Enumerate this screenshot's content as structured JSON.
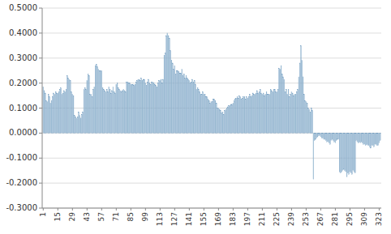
{
  "chart_data": {
    "type": "bar",
    "color": "#b8d0e0",
    "grid": true,
    "ylim": [
      -0.3,
      0.5
    ],
    "yticks": [
      {
        "value": -0.3,
        "label": "-0.3000"
      },
      {
        "value": -0.2,
        "label": "-0.2000"
      },
      {
        "value": -0.1,
        "label": "-0.1000"
      },
      {
        "value": 0.0,
        "label": "0.0000"
      },
      {
        "value": 0.1,
        "label": "0.1000"
      },
      {
        "value": 0.2,
        "label": "0.2000"
      },
      {
        "value": 0.3,
        "label": "0.3000"
      },
      {
        "value": 0.4,
        "label": "0.4000"
      },
      {
        "value": 0.5,
        "label": "0.5000"
      }
    ],
    "xlim": [
      0,
      325
    ],
    "xticks": [
      1,
      15,
      29,
      43,
      57,
      71,
      85,
      99,
      113,
      127,
      141,
      155,
      169,
      183,
      197,
      211,
      225,
      239,
      253,
      267,
      281,
      295,
      309,
      323
    ],
    "x": [
      1,
      2,
      3,
      4,
      5,
      6,
      7,
      8,
      9,
      10,
      11,
      12,
      13,
      14,
      15,
      16,
      17,
      18,
      19,
      20,
      21,
      22,
      23,
      24,
      25,
      26,
      27,
      28,
      29,
      30,
      31,
      32,
      33,
      34,
      35,
      36,
      37,
      38,
      39,
      40,
      41,
      42,
      43,
      44,
      45,
      46,
      47,
      48,
      49,
      50,
      51,
      52,
      53,
      54,
      55,
      56,
      57,
      58,
      59,
      60,
      61,
      62,
      63,
      64,
      65,
      66,
      67,
      68,
      69,
      70,
      71,
      72,
      73,
      74,
      75,
      76,
      77,
      78,
      79,
      80,
      81,
      82,
      83,
      84,
      85,
      86,
      87,
      88,
      89,
      90,
      91,
      92,
      93,
      94,
      95,
      96,
      97,
      98,
      99,
      100,
      101,
      102,
      103,
      104,
      105,
      106,
      107,
      108,
      109,
      110,
      111,
      112,
      113,
      114,
      115,
      116,
      117,
      118,
      119,
      120,
      121,
      122,
      123,
      124,
      125,
      126,
      127,
      128,
      129,
      130,
      131,
      132,
      133,
      134,
      135,
      136,
      137,
      138,
      139,
      140,
      141,
      142,
      143,
      144,
      145,
      146,
      147,
      148,
      149,
      150,
      151,
      152,
      153,
      154,
      155,
      156,
      157,
      158,
      159,
      160,
      161,
      162,
      163,
      164,
      165,
      166,
      167,
      168,
      169,
      170,
      171,
      172,
      173,
      174,
      175,
      176,
      177,
      178,
      179,
      180,
      181,
      182,
      183,
      184,
      185,
      186,
      187,
      188,
      189,
      190,
      191,
      192,
      193,
      194,
      195,
      196,
      197,
      198,
      199,
      200,
      201,
      202,
      203,
      204,
      205,
      206,
      207,
      208,
      209,
      210,
      211,
      212,
      213,
      214,
      215,
      216,
      217,
      218,
      219,
      220,
      221,
      222,
      223,
      224,
      225,
      226,
      227,
      228,
      229,
      230,
      231,
      232,
      233,
      234,
      235,
      236,
      237,
      238,
      239,
      240,
      241,
      242,
      243,
      244,
      245,
      246,
      247,
      248,
      249,
      250,
      251,
      252,
      253,
      254,
      255,
      256,
      257,
      258,
      259,
      260,
      261,
      262,
      263,
      264,
      265,
      266,
      267,
      268,
      269,
      270,
      271,
      272,
      273,
      274,
      275,
      276,
      277,
      278,
      279,
      280,
      281,
      282,
      283,
      284,
      285,
      286,
      287,
      288,
      289,
      290,
      291,
      292,
      293,
      294,
      295,
      296,
      297,
      298,
      299,
      300,
      301,
      302,
      303,
      304,
      305,
      306,
      307,
      308,
      309,
      310,
      311,
      312,
      313,
      314,
      315,
      316,
      317,
      318,
      319,
      320,
      321,
      322,
      323,
      324
    ],
    "values": [
      0.185,
      0.17,
      0.16,
      0.13,
      0.125,
      0.155,
      0.145,
      0.12,
      0.13,
      0.145,
      0.16,
      0.155,
      0.165,
      0.16,
      0.16,
      0.165,
      0.175,
      0.18,
      0.155,
      0.16,
      0.17,
      0.165,
      0.175,
      0.23,
      0.22,
      0.215,
      0.21,
      0.165,
      0.155,
      0.15,
      0.07,
      0.065,
      0.06,
      0.065,
      0.085,
      0.07,
      0.06,
      0.075,
      0.085,
      0.175,
      0.18,
      0.175,
      0.21,
      0.235,
      0.23,
      0.155,
      0.155,
      0.145,
      0.175,
      0.185,
      0.27,
      0.275,
      0.265,
      0.255,
      0.25,
      0.25,
      0.25,
      0.18,
      0.175,
      0.17,
      0.165,
      0.175,
      0.165,
      0.185,
      0.175,
      0.16,
      0.17,
      0.185,
      0.165,
      0.16,
      0.195,
      0.2,
      0.18,
      0.175,
      0.17,
      0.165,
      0.17,
      0.175,
      0.17,
      0.165,
      0.205,
      0.205,
      0.2,
      0.2,
      0.195,
      0.195,
      0.195,
      0.19,
      0.195,
      0.205,
      0.21,
      0.215,
      0.215,
      0.21,
      0.22,
      0.21,
      0.215,
      0.215,
      0.2,
      0.19,
      0.205,
      0.215,
      0.2,
      0.195,
      0.205,
      0.205,
      0.2,
      0.195,
      0.19,
      0.185,
      0.2,
      0.21,
      0.21,
      0.215,
      0.2,
      0.215,
      0.31,
      0.32,
      0.39,
      0.4,
      0.39,
      0.38,
      0.33,
      0.29,
      0.28,
      0.255,
      0.27,
      0.235,
      0.25,
      0.25,
      0.245,
      0.24,
      0.24,
      0.255,
      0.23,
      0.235,
      0.22,
      0.23,
      0.22,
      0.215,
      0.21,
      0.2,
      0.205,
      0.215,
      0.205,
      0.21,
      0.195,
      0.175,
      0.18,
      0.175,
      0.165,
      0.155,
      0.155,
      0.165,
      0.155,
      0.155,
      0.145,
      0.145,
      0.135,
      0.13,
      0.12,
      0.125,
      0.125,
      0.135,
      0.135,
      0.13,
      0.12,
      0.1,
      0.1,
      0.095,
      0.09,
      0.08,
      0.085,
      0.075,
      0.09,
      0.095,
      0.1,
      0.105,
      0.11,
      0.11,
      0.115,
      0.115,
      0.12,
      0.13,
      0.135,
      0.14,
      0.145,
      0.14,
      0.15,
      0.145,
      0.135,
      0.14,
      0.145,
      0.145,
      0.135,
      0.145,
      0.14,
      0.145,
      0.155,
      0.145,
      0.15,
      0.16,
      0.155,
      0.155,
      0.16,
      0.17,
      0.16,
      0.165,
      0.175,
      0.16,
      0.155,
      0.16,
      0.15,
      0.155,
      0.165,
      0.155,
      0.155,
      0.155,
      0.175,
      0.17,
      0.165,
      0.175,
      0.175,
      0.165,
      0.165,
      0.175,
      0.26,
      0.255,
      0.27,
      0.235,
      0.225,
      0.215,
      0.165,
      0.175,
      0.155,
      0.175,
      0.145,
      0.155,
      0.165,
      0.16,
      0.15,
      0.155,
      0.155,
      0.165,
      0.175,
      0.225,
      0.28,
      0.35,
      0.29,
      0.225,
      0.155,
      0.13,
      0.125,
      0.12,
      0.1,
      0.095,
      0.085,
      0.1,
      0.09,
      -0.185,
      -0.03,
      -0.025,
      -0.02,
      -0.015,
      -0.01,
      -0.01,
      -0.015,
      -0.02,
      -0.02,
      -0.025,
      -0.025,
      -0.03,
      -0.035,
      -0.035,
      -0.04,
      -0.045,
      -0.03,
      -0.025,
      -0.03,
      -0.035,
      -0.04,
      -0.03,
      -0.025,
      -0.025,
      -0.155,
      -0.16,
      -0.155,
      -0.15,
      -0.145,
      -0.15,
      -0.155,
      -0.175,
      -0.16,
      -0.165,
      -0.155,
      -0.16,
      -0.165,
      -0.15,
      -0.155,
      -0.16,
      -0.03,
      -0.035,
      -0.04,
      -0.035,
      -0.04,
      -0.035,
      -0.04,
      -0.045,
      -0.045,
      -0.05,
      -0.045,
      -0.05,
      -0.05,
      -0.055,
      -0.06,
      -0.05,
      -0.05,
      -0.055,
      -0.045,
      -0.045,
      -0.05,
      -0.05,
      -0.04,
      -0.03
    ]
  }
}
